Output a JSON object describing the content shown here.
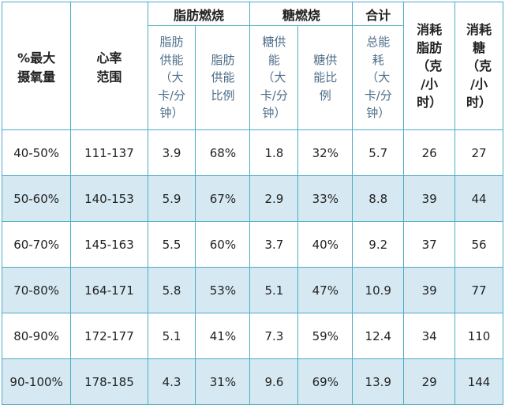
{
  "header": {
    "col_vo2": "%最大\n摄氧量",
    "col_hr": "心率\n范围",
    "group_fat": "脂肪燃烧",
    "group_carb": "糖燃烧",
    "group_total": "合计",
    "col_fat_cons": "消耗\n脂肪\n（克\n/小\n时）",
    "col_carb_cons": "消耗\n糖\n（克\n/小\n时）",
    "sub_fat_energy": "脂肪\n供能\n（大\n卡/分\n钟）",
    "sub_fat_ratio": "脂肪\n供能\n比例",
    "sub_carb_energy": "糖供\n能\n（大\n卡/分\n钟）",
    "sub_carb_ratio": "糖供\n能比\n例",
    "sub_total_energy": "总能\n耗\n（大\n卡/分\n钟）"
  },
  "rows": [
    [
      "40-50%",
      "111-137",
      "3.9",
      "68%",
      "1.8",
      "32%",
      "5.7",
      "26",
      "27"
    ],
    [
      "50-60%",
      "140-153",
      "5.9",
      "67%",
      "2.9",
      "33%",
      "8.8",
      "39",
      "44"
    ],
    [
      "60-70%",
      "145-163",
      "5.5",
      "60%",
      "3.7",
      "40%",
      "9.2",
      "37",
      "56"
    ],
    [
      "70-80%",
      "164-171",
      "5.8",
      "53%",
      "5.1",
      "47%",
      "10.9",
      "39",
      "77"
    ],
    [
      "80-90%",
      "172-177",
      "5.1",
      "41%",
      "7.3",
      "59%",
      "12.4",
      "34",
      "110"
    ],
    [
      "90-100%",
      "178-185",
      "4.3",
      "31%",
      "9.6",
      "69%",
      "13.9",
      "29",
      "144"
    ]
  ],
  "colors": {
    "border": "#4bacc6",
    "shade": "#d6e9f2",
    "subheader_text": "#4f6f8a"
  }
}
